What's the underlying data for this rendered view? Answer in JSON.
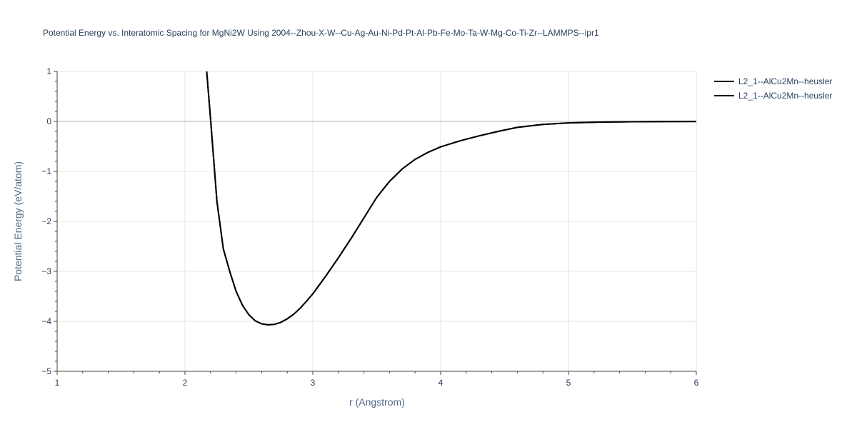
{
  "chart_data": {
    "type": "line",
    "title": "Potential Energy vs. Interatomic Spacing for MgNi2W Using 2004--Zhou-X-W--Cu-Ag-Au-Ni-Pd-Pt-Al-Pb-Fe-Mo-Ta-W-Mg-Co-Ti-Zr--LAMMPS--ipr1",
    "xlabel": "r (Angstrom)",
    "ylabel": "Potential Energy (eV/atom)",
    "xlim": [
      1,
      6
    ],
    "ylim": [
      -5,
      1
    ],
    "x_ticks": [
      1,
      2,
      3,
      4,
      5,
      6
    ],
    "x_tick_labels": [
      "1",
      "2",
      "3",
      "4",
      "5",
      "6"
    ],
    "y_ticks": [
      1,
      0,
      -1,
      -2,
      -3,
      -4,
      -5
    ],
    "y_tick_labels": [
      "1",
      "0",
      "−1",
      "−2",
      "−3",
      "−4",
      "−5"
    ],
    "grid": true,
    "legend_position": "top-right",
    "series": [
      {
        "name": "L2_1--AlCu2Mn--heusler",
        "color": "#000000",
        "x": [
          2.17,
          2.2,
          2.25,
          2.3,
          2.35,
          2.4,
          2.45,
          2.5,
          2.55,
          2.6,
          2.65,
          2.7,
          2.75,
          2.8,
          2.85,
          2.9,
          2.95,
          3.0,
          3.1,
          3.2,
          3.3,
          3.4,
          3.5,
          3.6,
          3.7,
          3.8,
          3.9,
          4.0,
          4.15,
          4.3,
          4.45,
          4.6,
          4.8,
          5.0,
          5.25,
          5.5,
          5.75,
          6.0
        ],
        "y": [
          1.0,
          0.05,
          -1.6,
          -2.55,
          -3.0,
          -3.4,
          -3.68,
          -3.87,
          -3.99,
          -4.05,
          -4.07,
          -4.06,
          -4.02,
          -3.95,
          -3.86,
          -3.74,
          -3.6,
          -3.45,
          -3.1,
          -2.73,
          -2.34,
          -1.93,
          -1.52,
          -1.2,
          -0.95,
          -0.76,
          -0.62,
          -0.51,
          -0.39,
          -0.29,
          -0.2,
          -0.12,
          -0.06,
          -0.03,
          -0.015,
          -0.008,
          -0.004,
          -0.002
        ]
      },
      {
        "name": "L2_1--AlCu2Mn--heusler",
        "color": "#000000",
        "x": [
          2.17,
          2.2,
          2.25,
          2.3,
          2.35,
          2.4,
          2.45,
          2.5,
          2.55,
          2.6,
          2.65,
          2.7,
          2.75,
          2.8,
          2.85,
          2.9,
          2.95,
          3.0,
          3.1,
          3.2,
          3.3,
          3.4,
          3.5,
          3.6,
          3.7,
          3.8,
          3.9,
          4.0,
          4.15,
          4.3,
          4.45,
          4.6,
          4.8,
          5.0,
          5.25,
          5.5,
          5.75,
          6.0
        ],
        "y": [
          1.0,
          0.05,
          -1.6,
          -2.55,
          -3.0,
          -3.4,
          -3.68,
          -3.87,
          -3.99,
          -4.05,
          -4.07,
          -4.06,
          -4.02,
          -3.95,
          -3.86,
          -3.74,
          -3.6,
          -3.45,
          -3.1,
          -2.73,
          -2.34,
          -1.93,
          -1.52,
          -1.2,
          -0.95,
          -0.76,
          -0.62,
          -0.51,
          -0.39,
          -0.29,
          -0.2,
          -0.12,
          -0.06,
          -0.03,
          -0.015,
          -0.008,
          -0.004,
          -0.002
        ]
      }
    ]
  }
}
